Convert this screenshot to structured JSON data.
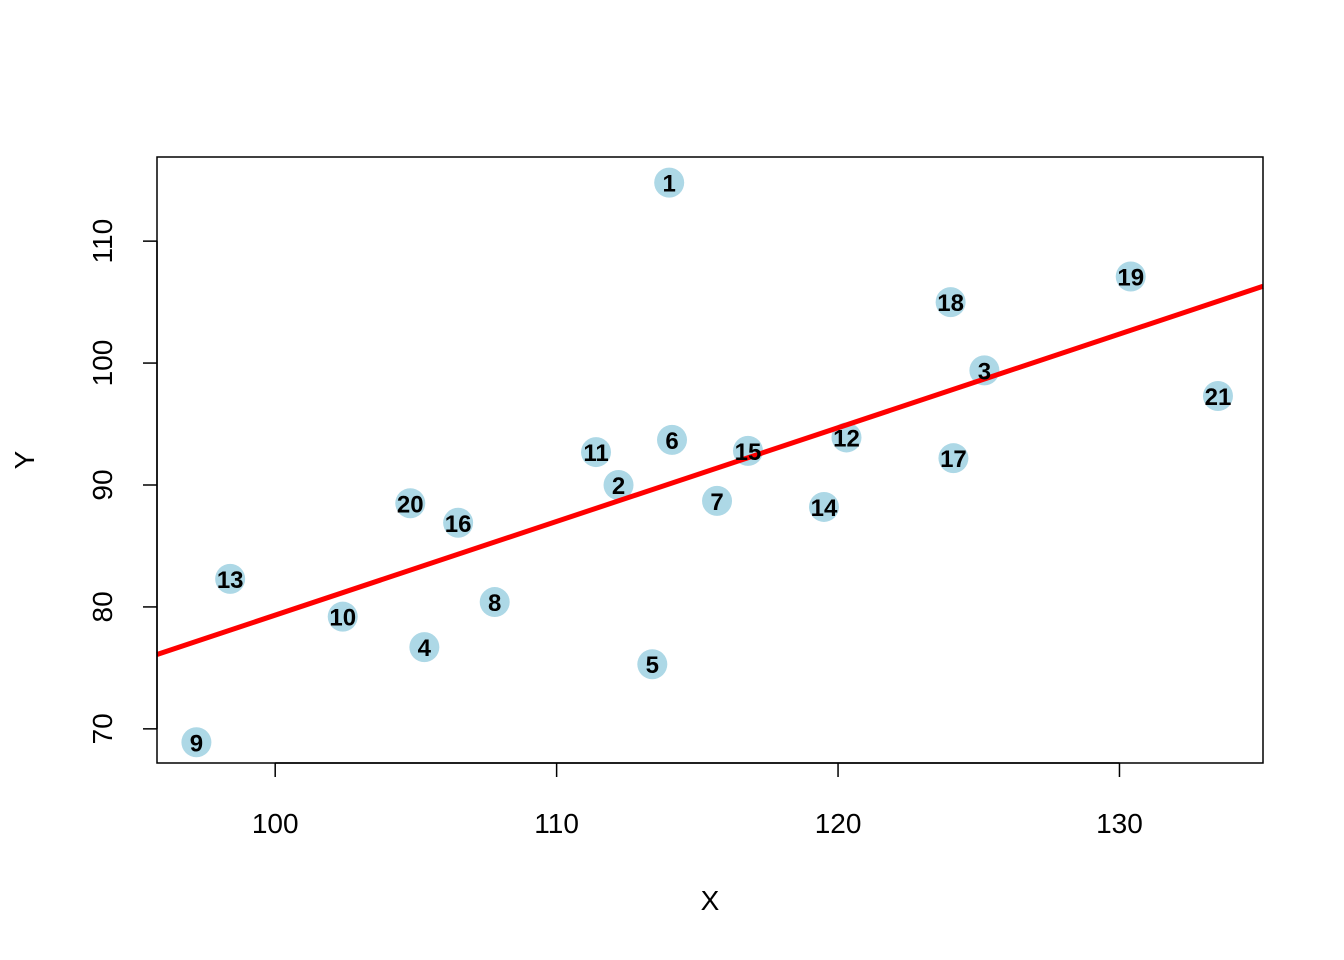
{
  "chart_data": {
    "type": "scatter",
    "title": "",
    "xlabel": "X",
    "ylabel": "Y",
    "xlim": [
      95.8,
      135.1
    ],
    "ylim": [
      67.2,
      116.9
    ],
    "x_ticks": [
      100,
      110,
      120,
      130
    ],
    "y_ticks": [
      70,
      80,
      90,
      100,
      110
    ],
    "x_tick_labels": [
      "100",
      "110",
      "120",
      "130"
    ],
    "y_tick_labels": [
      "70",
      "80",
      "90",
      "100",
      "110"
    ],
    "grid": false,
    "legend": "none",
    "point_color": "#add8e6",
    "line_color": "#ff0000",
    "points": [
      {
        "label": "1",
        "x": 114.0,
        "y": 114.8
      },
      {
        "label": "2",
        "x": 112.2,
        "y": 90.0
      },
      {
        "label": "3",
        "x": 125.2,
        "y": 99.4
      },
      {
        "label": "4",
        "x": 105.3,
        "y": 76.7
      },
      {
        "label": "5",
        "x": 113.4,
        "y": 75.3
      },
      {
        "label": "6",
        "x": 114.1,
        "y": 93.7
      },
      {
        "label": "7",
        "x": 115.7,
        "y": 88.7
      },
      {
        "label": "8",
        "x": 107.8,
        "y": 80.4
      },
      {
        "label": "9",
        "x": 97.2,
        "y": 68.9
      },
      {
        "label": "10",
        "x": 102.4,
        "y": 79.2
      },
      {
        "label": "11",
        "x": 111.4,
        "y": 92.7
      },
      {
        "label": "12",
        "x": 120.3,
        "y": 93.9
      },
      {
        "label": "13",
        "x": 98.4,
        "y": 82.3
      },
      {
        "label": "14",
        "x": 119.5,
        "y": 88.2
      },
      {
        "label": "15",
        "x": 116.8,
        "y": 92.8
      },
      {
        "label": "16",
        "x": 106.5,
        "y": 86.9
      },
      {
        "label": "17",
        "x": 124.1,
        "y": 92.2
      },
      {
        "label": "18",
        "x": 124.0,
        "y": 105.0
      },
      {
        "label": "19",
        "x": 130.4,
        "y": 107.1
      },
      {
        "label": "20",
        "x": 104.8,
        "y": 88.5
      },
      {
        "label": "21",
        "x": 133.5,
        "y": 97.3
      }
    ],
    "regression_line": {
      "x": [
        95.8,
        135.1
      ],
      "y": [
        76.1,
        106.3
      ]
    }
  }
}
